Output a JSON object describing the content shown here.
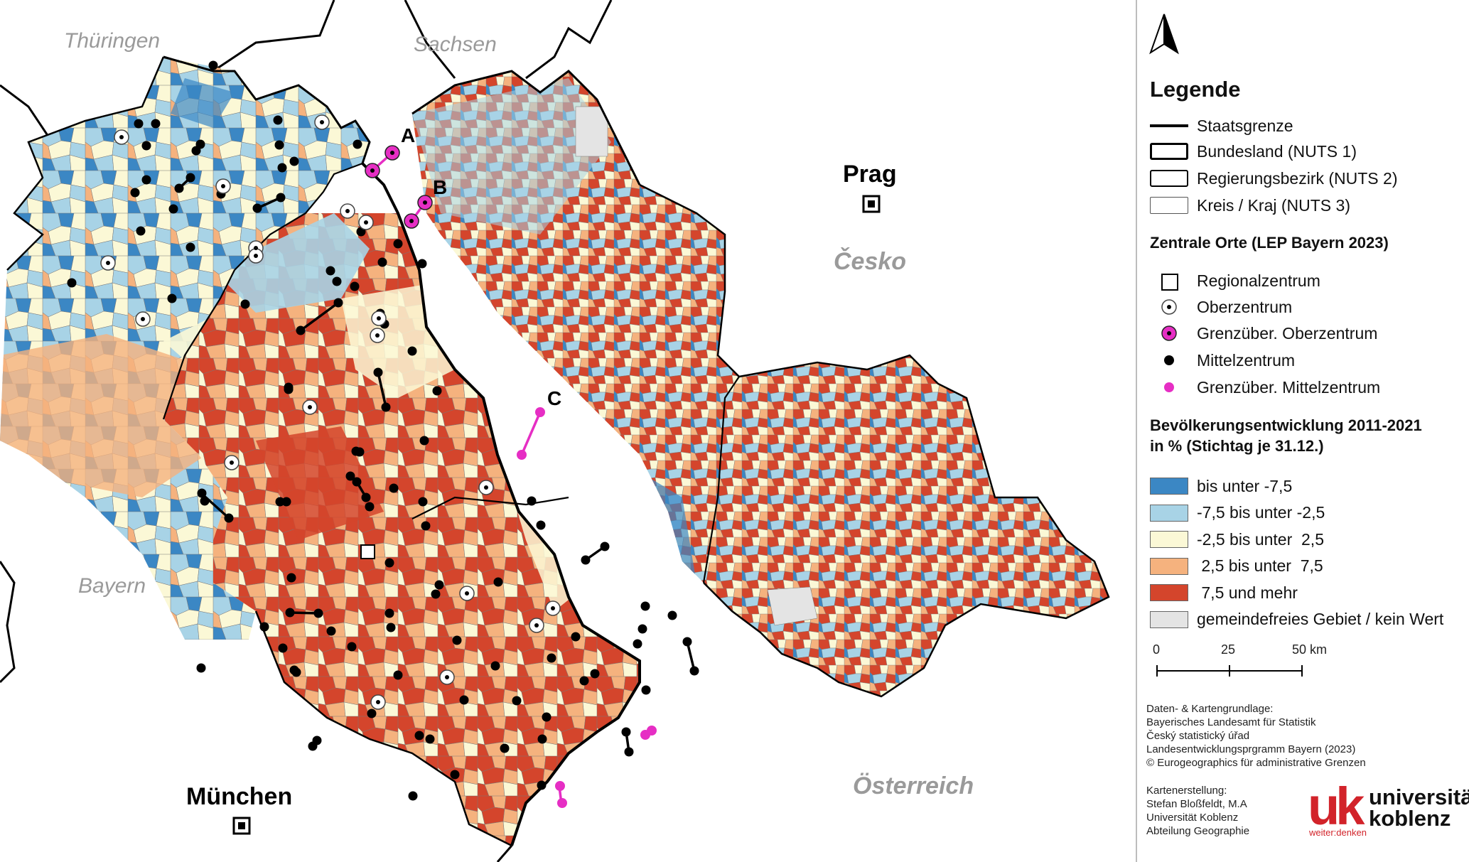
{
  "map": {
    "countries": {
      "cz": "Česko",
      "at": "Österreich",
      "by": "Bayern",
      "th": "Thüringen",
      "sn": "Sachsen"
    },
    "cities": {
      "prague": "Prag",
      "munich": "München"
    },
    "markers": {
      "a": "A",
      "b": "B",
      "c": "C"
    }
  },
  "legend": {
    "title": "Legende",
    "borders": [
      "Staatsgrenze",
      "Bundesland (NUTS 1)",
      "Regierungsbezirk (NUTS 2)",
      "Kreis / Kraj (NUTS 3)"
    ],
    "central_places_title": "Zentrale Orte (LEP Bayern 2023)",
    "central_places": [
      "Regionalzentrum",
      "Oberzentrum",
      "Grenzüber. Oberzentrum",
      "Mittelzentrum",
      "Grenzüber. Mittelzentrum"
    ],
    "pop_title_1": "Bevölkerungsentwicklung 2011-2021",
    "pop_title_2": "in % (Stichtag je 31.12.)",
    "classes": [
      {
        "label": "bis unter -7,5",
        "color": "#3b87c4"
      },
      {
        "label": "-7,5 bis unter -2,5",
        "color": "#a8d3e6"
      },
      {
        "label": "-2,5 bis unter  2,5",
        "color": "#fbf8d6"
      },
      {
        "label": " 2,5 bis unter  7,5",
        "color": "#f5b27e"
      },
      {
        "label": " 7,5 und mehr",
        "color": "#d4452c"
      },
      {
        "label": "gemeindefreies Gebiet / kein Wert",
        "color": "#e4e4e4"
      }
    ],
    "scale": {
      "zero": "0",
      "mid": "25",
      "end": "50 km"
    }
  },
  "credits": {
    "data_title": "Daten- & Kartengrundlage:",
    "data_lines": [
      "Bayerisches Landesamt für Statistik",
      "Český statistický úřad",
      "Landesentwicklungsprgramm Bayern (2023)",
      "© Eurogeographics für administrative Grenzen"
    ],
    "author_title": "Kartenerstellung:",
    "author_lines": [
      "Stefan Bloßfeldt, M.A",
      "Universität Koblenz",
      "Abteilung Geographie"
    ]
  },
  "logo": {
    "mark": "uk",
    "line1": "universität",
    "line2": "koblenz",
    "tagline": "weiter:denken"
  }
}
